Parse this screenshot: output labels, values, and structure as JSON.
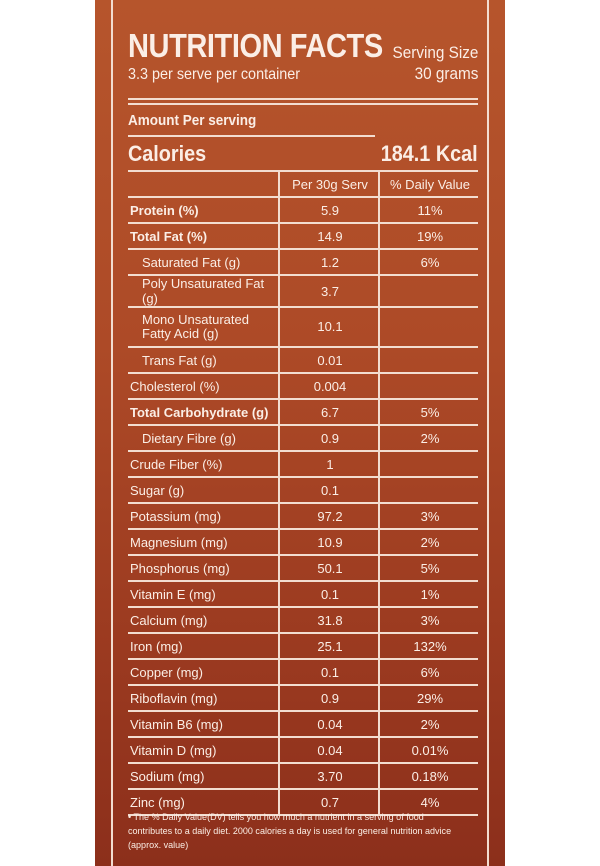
{
  "header": {
    "title": "NUTRITION FACTS",
    "subtitle": "3.3 per serve per container",
    "serving_label": "Serving Size",
    "serving_value": "30 grams"
  },
  "amount_label": "Amount Per serving",
  "calories": {
    "label": "Calories",
    "value": "184.1 Kcal"
  },
  "table": {
    "columns": [
      "",
      "Per 30g Serv",
      "% Daily Value"
    ],
    "rows": [
      {
        "name": "Protein (%)",
        "amount": "5.9",
        "dv": "11%",
        "bold": true
      },
      {
        "name": "Total Fat (%)",
        "amount": "14.9",
        "dv": "19%",
        "bold": true
      },
      {
        "name": "Saturated Fat (g)",
        "amount": "1.2",
        "dv": "6%",
        "indent": true
      },
      {
        "name": "Poly Unsaturated Fat (g)",
        "amount": "3.7",
        "dv": "",
        "indent": true
      },
      {
        "name": "Mono Unsaturated Fatty Acid (g)",
        "amount": "10.1",
        "dv": "",
        "indent": true,
        "tall": true
      },
      {
        "name": "Trans Fat (g)",
        "amount": "0.01",
        "dv": "",
        "indent": true
      },
      {
        "name": "Cholesterol (%)",
        "amount": "0.004",
        "dv": ""
      },
      {
        "name": "Total Carbohydrate (g)",
        "amount": "6.7",
        "dv": "5%",
        "bold": true
      },
      {
        "name": "Dietary Fibre (g)",
        "amount": "0.9",
        "dv": "2%",
        "indent": true
      },
      {
        "name": "Crude Fiber (%)",
        "amount": "1",
        "dv": ""
      },
      {
        "name": "Sugar (g)",
        "amount": "0.1",
        "dv": ""
      },
      {
        "name": "Potassium (mg)",
        "amount": "97.2",
        "dv": "3%"
      },
      {
        "name": "Magnesium (mg)",
        "amount": "10.9",
        "dv": "2%"
      },
      {
        "name": "Phosphorus (mg)",
        "amount": "50.1",
        "dv": "5%"
      },
      {
        "name": "Vitamin E (mg)",
        "amount": "0.1",
        "dv": "1%"
      },
      {
        "name": "Calcium (mg)",
        "amount": "31.8",
        "dv": "3%"
      },
      {
        "name": "Iron (mg)",
        "amount": "25.1",
        "dv": "132%"
      },
      {
        "name": "Copper (mg)",
        "amount": "0.1",
        "dv": "6%"
      },
      {
        "name": "Riboflavin (mg)",
        "amount": "0.9",
        "dv": "29%"
      },
      {
        "name": "Vitamin B6 (mg)",
        "amount": "0.04",
        "dv": "2%"
      },
      {
        "name": "Vitamin D (mg)",
        "amount": "0.04",
        "dv": "0.01%"
      },
      {
        "name": "Sodium (mg)",
        "amount": "3.70",
        "dv": "0.18%"
      },
      {
        "name": "Zinc (mg)",
        "amount": "0.7",
        "dv": "4%"
      }
    ]
  },
  "footnote": "• The % Daily Value(DV) tells you how much a nutrient in a serving of food contributes to a daily diet. 2000 calories a day is used for general nutrition advice (approx. value)",
  "colors": {
    "panel_top": "#b6552c",
    "panel_bottom": "#8c2f1b",
    "text": "#fbeee6"
  }
}
